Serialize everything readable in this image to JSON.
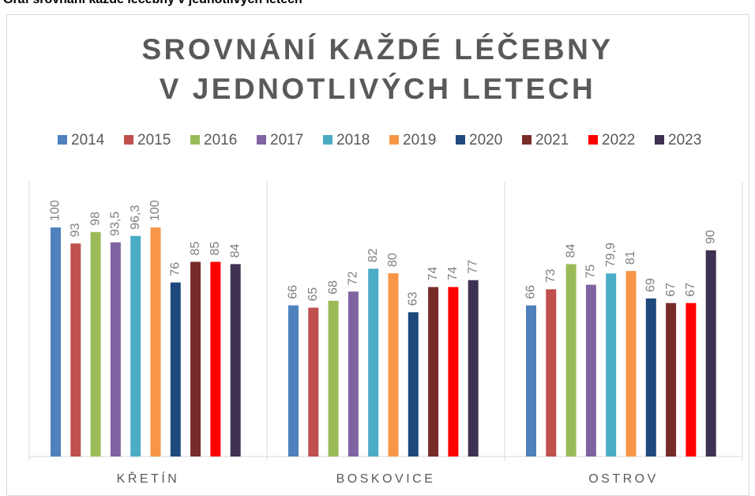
{
  "caption": "Graf srovnání každé léčebny v jednotlivých letech",
  "chart_data": {
    "type": "bar",
    "title": "SROVNÁNÍ KAŽDÉ LÉČEBNY V JEDNOTLIVÝCH LETECH",
    "categories": [
      "KŘETÍN",
      "BOSKOVICE",
      "OSTROV"
    ],
    "ylim": [
      0,
      120
    ],
    "legend": "top",
    "series": [
      {
        "name": "2014",
        "color": "#4f81bd",
        "values": [
          100,
          66,
          66
        ]
      },
      {
        "name": "2015",
        "color": "#c0504d",
        "values": [
          93,
          65,
          73
        ]
      },
      {
        "name": "2016",
        "color": "#9bbb59",
        "values": [
          98,
          68,
          84
        ]
      },
      {
        "name": "2017",
        "color": "#8064a2",
        "values": [
          93.5,
          72,
          75
        ],
        "value_labels": [
          "93,5",
          "72",
          "75"
        ]
      },
      {
        "name": "2018",
        "color": "#4bacc6",
        "values": [
          96.3,
          82,
          79.9
        ],
        "value_labels": [
          "96,3",
          "82",
          "79,9"
        ]
      },
      {
        "name": "2019",
        "color": "#f79646",
        "values": [
          100,
          80,
          81
        ]
      },
      {
        "name": "2020",
        "color": "#1f497d",
        "values": [
          76,
          63,
          69
        ]
      },
      {
        "name": "2021",
        "color": "#772c2a",
        "values": [
          85,
          74,
          67
        ]
      },
      {
        "name": "2022",
        "color": "#ff0000",
        "values": [
          85,
          74,
          67
        ]
      },
      {
        "name": "2023",
        "color": "#3f3151",
        "values": [
          84,
          77,
          90
        ]
      }
    ]
  }
}
